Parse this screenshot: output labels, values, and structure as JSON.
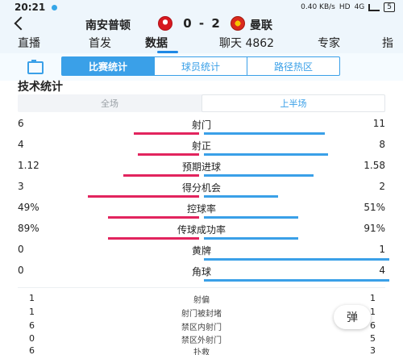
{
  "status_bar": {
    "time": "20:21",
    "network": "0.40 KB/s",
    "hd": "HD",
    "signal": "4G",
    "battery": "5"
  },
  "match": {
    "home_team": "南安普顿",
    "away_team": "曼联",
    "score": "0 - 2"
  },
  "main_tabs": [
    {
      "label": "直播"
    },
    {
      "label": "首发"
    },
    {
      "label": "数据"
    },
    {
      "label": "聊天 4862"
    },
    {
      "label": "专家"
    },
    {
      "label": "指"
    }
  ],
  "segments": {
    "items": [
      {
        "label": "比赛统计"
      },
      {
        "label": "球员统计"
      },
      {
        "label": "路径热区"
      }
    ],
    "active": "比赛统计"
  },
  "section_title": "技术统计",
  "period_tabs": {
    "left": "全场",
    "right": "上半场",
    "active": "上半场"
  },
  "stats": [
    {
      "label": "射门",
      "home": "6",
      "away": "11",
      "home_share": 0.35,
      "away_share": 0.65
    },
    {
      "label": "射正",
      "home": "4",
      "away": "8",
      "home_share": 0.33,
      "away_share": 0.67
    },
    {
      "label": "预期进球",
      "home": "1.12",
      "away": "1.58",
      "home_share": 0.41,
      "away_share": 0.59
    },
    {
      "label": "得分机会",
      "home": "3",
      "away": "2",
      "home_share": 0.6,
      "away_share": 0.4
    },
    {
      "label": "控球率",
      "home": "49%",
      "away": "51%",
      "home_share": 0.49,
      "away_share": 0.51
    },
    {
      "label": "传球成功率",
      "home": "89%",
      "away": "91%",
      "home_share": 0.49,
      "away_share": 0.51
    },
    {
      "label": "黄牌",
      "home": "0",
      "away": "1",
      "home_share": 0,
      "away_share": 1
    },
    {
      "label": "角球",
      "home": "0",
      "away": "4",
      "home_share": 0,
      "away_share": 1
    }
  ],
  "simple_stats": [
    {
      "label": "射偏",
      "home": "1",
      "away": "1"
    },
    {
      "label": "射门被封堵",
      "home": "1",
      "away": "1"
    },
    {
      "label": "禁区内射门",
      "home": "6",
      "away": "6"
    },
    {
      "label": "禁区外射门",
      "home": "0",
      "away": "5"
    },
    {
      "label": "扑救",
      "home": "6",
      "away": "3"
    }
  ],
  "danmaku_label": "弹",
  "colors": {
    "home_bar": "#e2245e",
    "away_bar": "#3aa0e8",
    "accent": "#3aa0e8",
    "header_bg": "#eef6fc"
  }
}
